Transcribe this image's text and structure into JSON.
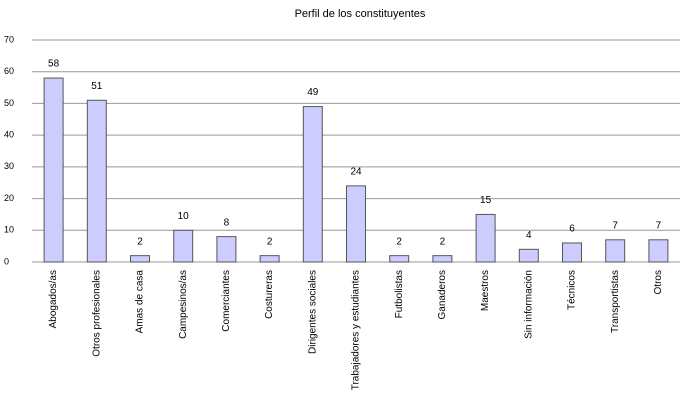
{
  "chart_data": {
    "type": "bar",
    "title": "Perfil de los constituyentes",
    "categories": [
      "Abogados/as",
      "Otros profesionales",
      "Amas de casa",
      "Campesinos/as",
      "Comerciantes",
      "Costureras",
      "Dirigentes sociales",
      "Trabajadores y estudiantes",
      "Futbolistas",
      "Ganaderos",
      "Maestros",
      "Sin información",
      "Técnicos",
      "Transportistas",
      "Otros"
    ],
    "values": [
      58,
      51,
      2,
      10,
      8,
      2,
      49,
      24,
      2,
      2,
      15,
      4,
      6,
      7,
      7
    ],
    "color": "#ccccff",
    "ylim": [
      0,
      70
    ],
    "yticks": [
      0,
      10,
      20,
      30,
      40,
      50,
      60,
      70
    ],
    "grid": true
  }
}
